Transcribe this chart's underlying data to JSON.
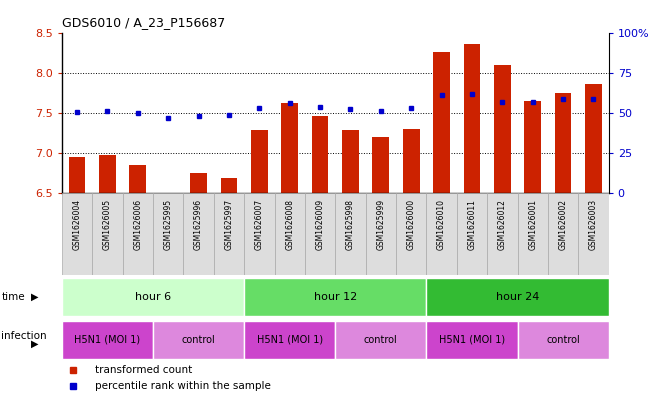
{
  "title": "GDS6010 / A_23_P156687",
  "samples": [
    "GSM1626004",
    "GSM1626005",
    "GSM1626006",
    "GSM1625995",
    "GSM1625996",
    "GSM1625997",
    "GSM1626007",
    "GSM1626008",
    "GSM1626009",
    "GSM1625998",
    "GSM1625999",
    "GSM1626000",
    "GSM1626010",
    "GSM1626011",
    "GSM1626012",
    "GSM1626001",
    "GSM1626002",
    "GSM1626003"
  ],
  "bar_values": [
    6.95,
    6.97,
    6.85,
    6.5,
    6.75,
    6.68,
    7.28,
    7.63,
    7.46,
    7.28,
    7.2,
    7.3,
    8.27,
    8.37,
    8.1,
    7.65,
    7.75,
    7.87
  ],
  "dot_values": [
    7.51,
    7.52,
    7.5,
    7.44,
    7.46,
    7.47,
    7.56,
    7.62,
    7.58,
    7.55,
    7.52,
    7.56,
    7.73,
    7.74,
    7.64,
    7.64,
    7.67,
    7.67
  ],
  "ylim": [
    6.5,
    8.5
  ],
  "yticks": [
    6.5,
    7.0,
    7.5,
    8.0,
    8.5
  ],
  "bar_color": "#cc2200",
  "dot_color": "#0000cc",
  "grid_color": "#000000",
  "time_groups": [
    {
      "label": "hour 6",
      "start": 0,
      "end": 6,
      "color": "#ccffcc"
    },
    {
      "label": "hour 12",
      "start": 6,
      "end": 12,
      "color": "#66dd66"
    },
    {
      "label": "hour 24",
      "start": 12,
      "end": 18,
      "color": "#33bb33"
    }
  ],
  "infection_groups": [
    {
      "label": "H5N1 (MOI 1)",
      "start": 0,
      "end": 3,
      "color": "#cc44cc"
    },
    {
      "label": "control",
      "start": 3,
      "end": 6,
      "color": "#dd88dd"
    },
    {
      "label": "H5N1 (MOI 1)",
      "start": 6,
      "end": 9,
      "color": "#cc44cc"
    },
    {
      "label": "control",
      "start": 9,
      "end": 12,
      "color": "#dd88dd"
    },
    {
      "label": "H5N1 (MOI 1)",
      "start": 12,
      "end": 15,
      "color": "#cc44cc"
    },
    {
      "label": "control",
      "start": 15,
      "end": 18,
      "color": "#dd88dd"
    }
  ],
  "legend_items": [
    {
      "label": "transformed count",
      "color": "#cc2200"
    },
    {
      "label": "percentile rank within the sample",
      "color": "#0000cc"
    }
  ],
  "sample_bg_color": "#dddddd",
  "sample_border_color": "#aaaaaa",
  "bar_width": 0.55
}
